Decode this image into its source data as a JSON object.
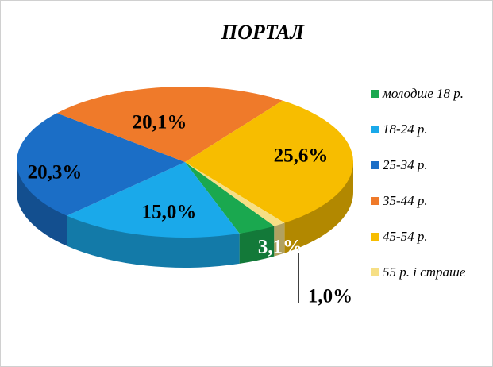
{
  "chart_data": {
    "type": "pie",
    "title": "ПОРТАЛ",
    "categories": [
      "молодше 18 р.",
      "18-24 р.",
      "25-34 р.",
      "35-44 р.",
      "45-54 р.",
      "55 р. і страше"
    ],
    "values": [
      3.1,
      15.0,
      20.3,
      20.1,
      25.6,
      1.0
    ],
    "value_labels": [
      "3,1%",
      "15,0%",
      "20,3%",
      "20,1%",
      "25,6%",
      "1,0%"
    ],
    "colors": [
      "#1aa84f",
      "#1aa9ea",
      "#1b6ec6",
      "#ef7a2a",
      "#f7bd00",
      "#f6df85"
    ],
    "legend": "right"
  }
}
